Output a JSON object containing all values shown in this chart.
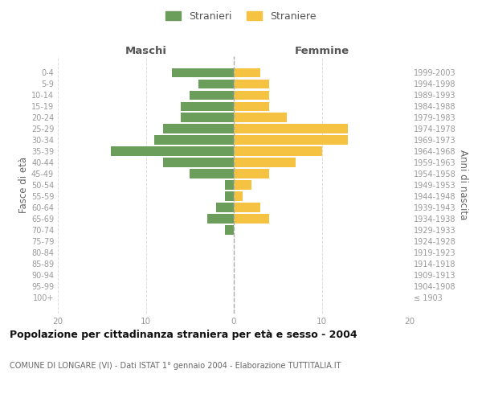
{
  "age_groups": [
    "100+",
    "95-99",
    "90-94",
    "85-89",
    "80-84",
    "75-79",
    "70-74",
    "65-69",
    "60-64",
    "55-59",
    "50-54",
    "45-49",
    "40-44",
    "35-39",
    "30-34",
    "25-29",
    "20-24",
    "15-19",
    "10-14",
    "5-9",
    "0-4"
  ],
  "birth_years": [
    "≤ 1903",
    "1904-1908",
    "1909-1913",
    "1914-1918",
    "1919-1923",
    "1924-1928",
    "1929-1933",
    "1934-1938",
    "1939-1943",
    "1944-1948",
    "1949-1953",
    "1954-1958",
    "1959-1963",
    "1964-1968",
    "1969-1973",
    "1974-1978",
    "1979-1983",
    "1984-1988",
    "1989-1993",
    "1994-1998",
    "1999-2003"
  ],
  "maschi": [
    0,
    0,
    0,
    0,
    0,
    0,
    1,
    3,
    2,
    1,
    1,
    5,
    8,
    14,
    9,
    8,
    6,
    6,
    5,
    4,
    7
  ],
  "femmine": [
    0,
    0,
    0,
    0,
    0,
    0,
    0,
    4,
    3,
    1,
    2,
    4,
    7,
    10,
    13,
    13,
    6,
    4,
    4,
    4,
    3
  ],
  "maschi_color": "#6a9e5a",
  "femmine_color": "#f5c242",
  "title": "Popolazione per cittadinanza straniera per età e sesso - 2004",
  "subtitle": "COMUNE DI LONGARE (VI) - Dati ISTAT 1° gennaio 2004 - Elaborazione TUTTITALIA.IT",
  "xlabel_left": "Maschi",
  "xlabel_right": "Femmine",
  "ylabel_left": "Fasce di età",
  "ylabel_right": "Anni di nascita",
  "legend_stranieri": "Stranieri",
  "legend_straniere": "Straniere",
  "xlim": 20,
  "background_color": "#ffffff",
  "grid_color": "#dddddd",
  "bar_height": 0.8
}
